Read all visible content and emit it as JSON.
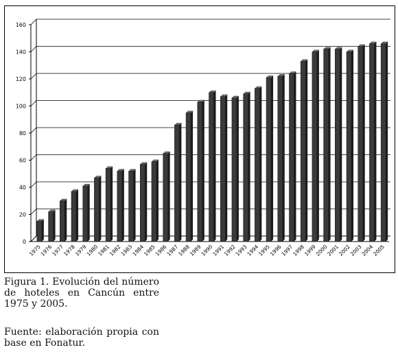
{
  "caption": "Figura 1. Evolución del número de hoteles en Cancún entre 1975 y 2005.",
  "source": "Fuente: elaboración propia con base en Fonatur.",
  "chart_data": {
    "type": "bar",
    "title": "",
    "xlabel": "",
    "ylabel": "",
    "ylim": [
      0,
      160
    ],
    "yticks": [
      0,
      20,
      40,
      60,
      80,
      100,
      120,
      140,
      160
    ],
    "grid": true,
    "categories": [
      "1975",
      "1976",
      "1977",
      "1978",
      "1979",
      "1980",
      "1981",
      "1982",
      "1983",
      "1984",
      "1985",
      "1986",
      "1987",
      "1988",
      "1989",
      "1990",
      "1991",
      "1992",
      "1993",
      "1994",
      "1995",
      "1996",
      "1997",
      "1998",
      "1999",
      "2000",
      "2001",
      "2002",
      "2003",
      "2004",
      "2005"
    ],
    "values": [
      15,
      22,
      30,
      37,
      41,
      47,
      54,
      52,
      52,
      57,
      59,
      65,
      86,
      95,
      103,
      110,
      107,
      106,
      109,
      113,
      121,
      122,
      124,
      133,
      140,
      142,
      142,
      140,
      144,
      146,
      146
    ],
    "bar_color": "#3a3a3a"
  }
}
